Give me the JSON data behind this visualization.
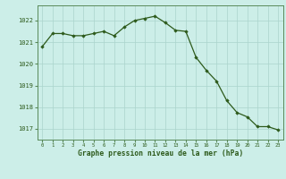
{
  "x": [
    0,
    1,
    2,
    3,
    4,
    5,
    6,
    7,
    8,
    9,
    10,
    11,
    12,
    13,
    14,
    15,
    16,
    17,
    18,
    19,
    20,
    21,
    22,
    23
  ],
  "y": [
    1020.8,
    1021.4,
    1021.4,
    1021.3,
    1021.3,
    1021.4,
    1021.5,
    1021.3,
    1021.7,
    1022.0,
    1022.1,
    1022.2,
    1021.9,
    1021.55,
    1021.5,
    1020.3,
    1019.7,
    1019.2,
    1018.3,
    1017.75,
    1017.55,
    1017.1,
    1017.1,
    1016.95
  ],
  "ylim": [
    1016.5,
    1022.7
  ],
  "yticks": [
    1017,
    1018,
    1019,
    1020,
    1021,
    1022
  ],
  "xticks": [
    0,
    1,
    2,
    3,
    4,
    5,
    6,
    7,
    8,
    9,
    10,
    11,
    12,
    13,
    14,
    15,
    16,
    17,
    18,
    19,
    20,
    21,
    22,
    23
  ],
  "line_color": "#2d5a1b",
  "marker_color": "#2d5a1b",
  "bg_color": "#cceee8",
  "grid_color": "#aad4cc",
  "xlabel": "Graphe pression niveau de la mer (hPa)",
  "xlabel_color": "#2d5a1b",
  "tick_color": "#2d5a1b",
  "border_color": "#5a8a5a"
}
